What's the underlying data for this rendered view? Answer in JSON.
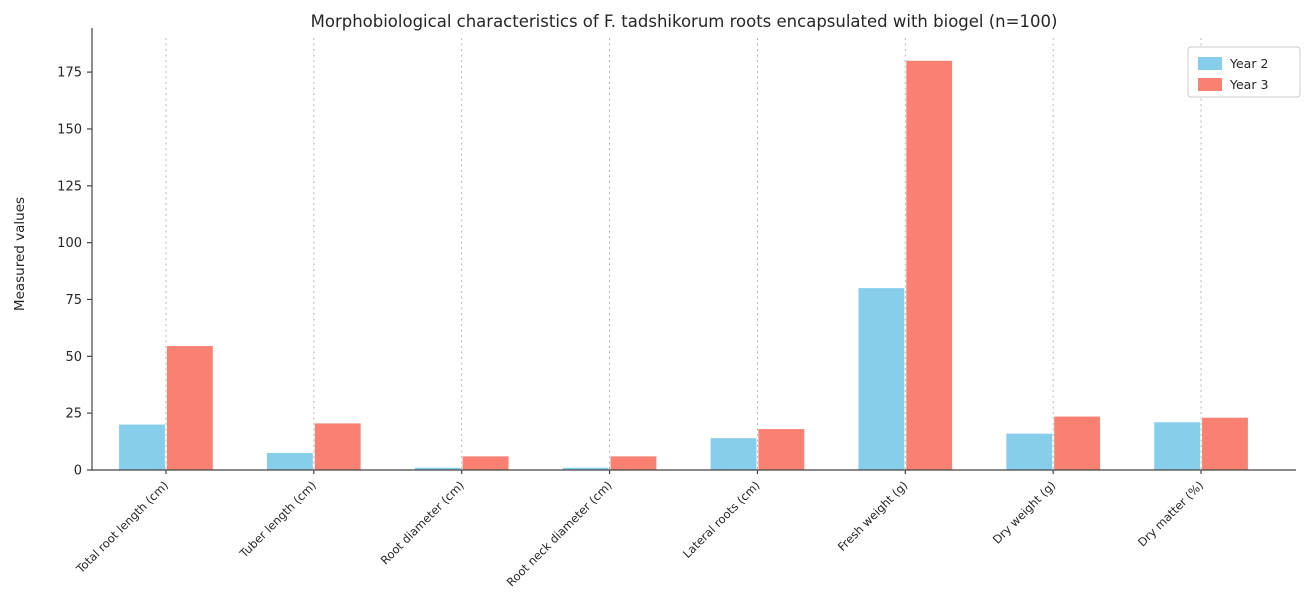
{
  "chart_data": {
    "type": "bar",
    "title": "Morphobiological characteristics of F. tadshikorum roots encapsulated with biogel (n=100)",
    "ylabel": "Measured values",
    "xlabel": "",
    "categories": [
      "Total root length (cm)",
      "Tuber length (cm)",
      "Root diameter (cm)",
      "Root neck diameter (cm)",
      "Lateral roots (cm)",
      "Fresh weight (g)",
      "Dry weight (g)",
      "Dry matter (%)"
    ],
    "series": [
      {
        "name": "Year 2",
        "color": "#87ceeb",
        "values": [
          20,
          7.5,
          1,
          1,
          14,
          80,
          16,
          21
        ]
      },
      {
        "name": "Year 3",
        "color": "#fa8072",
        "values": [
          54.5,
          20.5,
          6,
          6,
          18,
          180,
          23.5,
          23
        ]
      }
    ],
    "ylim": [
      0,
      190
    ],
    "yticks": [
      0,
      25,
      50,
      75,
      100,
      125,
      150,
      175
    ],
    "grid": "vertical-dashed",
    "legend_position": "upper right"
  },
  "colors": {
    "background": "#ffffff",
    "axis": "#444444",
    "grid": "#b0b0b0",
    "text": "#262626"
  }
}
